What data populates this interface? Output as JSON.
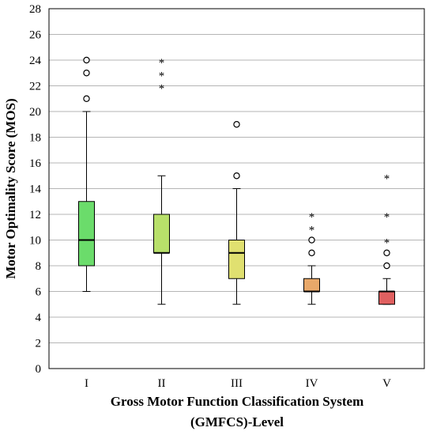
{
  "chart_data": {
    "type": "boxplot",
    "xlabel_line1": "Gross Motor Function Classification System",
    "xlabel_line2": "(GMFCS)-Level",
    "ylabel": "Motor Optimality Score (MOS)",
    "ylim": [
      0,
      28
    ],
    "yticks": [
      0,
      2,
      4,
      6,
      8,
      10,
      12,
      14,
      16,
      18,
      20,
      22,
      24,
      26,
      28
    ],
    "grid": true,
    "boxes": [
      {
        "category": "I",
        "color": "#6bdc6b",
        "whisker_low": 6,
        "q1": 8,
        "median": 10,
        "q3": 13,
        "whisker_high": 20,
        "outliers": [
          21,
          23,
          24
        ],
        "extremes": []
      },
      {
        "category": "II",
        "color": "#b8e06a",
        "whisker_low": 5,
        "q1": 9,
        "median": 9,
        "q3": 12,
        "whisker_high": 15,
        "outliers": [],
        "extremes": [
          22,
          23,
          24
        ]
      },
      {
        "category": "III",
        "color": "#e0e070",
        "whisker_low": 5,
        "q1": 7,
        "median": 9,
        "q3": 10,
        "whisker_high": 14,
        "outliers": [
          15,
          19
        ],
        "extremes": []
      },
      {
        "category": "IV",
        "color": "#e8a86a",
        "whisker_low": 5,
        "q1": 6,
        "median": 6,
        "q3": 7,
        "whisker_high": 8,
        "outliers": [
          9,
          10
        ],
        "extremes": [
          11,
          12
        ]
      },
      {
        "category": "V",
        "color": "#e06060",
        "whisker_low": 5,
        "q1": 5,
        "median": 6,
        "q3": 6,
        "whisker_high": 7,
        "outliers": [
          8,
          9
        ],
        "extremes": [
          10,
          12,
          15
        ]
      }
    ]
  }
}
